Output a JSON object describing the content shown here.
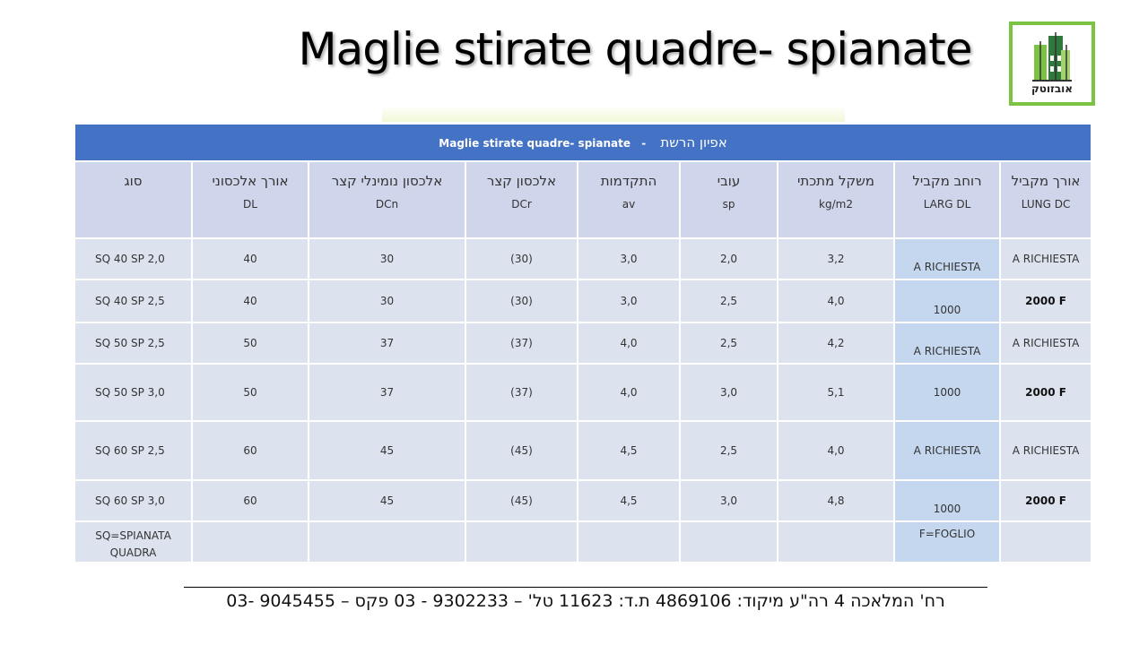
{
  "page": {
    "title": "Maglie stirate quadre- spianate"
  },
  "logo": {
    "text": "אובזוטק"
  },
  "table": {
    "banner": {
      "latin": "Maglie stirate quadre- spianate",
      "separator": "-",
      "hebrew": "אפיון הרשת"
    },
    "headers": [
      {
        "hebrew": "סוג",
        "abbr": ""
      },
      {
        "hebrew": "אורך אלכסוני",
        "abbr": "DL"
      },
      {
        "hebrew": "אלכסון נומינלי קצר",
        "abbr": "DCn"
      },
      {
        "hebrew": "אלכסון קצר",
        "abbr": "DCr"
      },
      {
        "hebrew": "התקדמות",
        "abbr": "av"
      },
      {
        "hebrew": "עובי",
        "abbr": "sp"
      },
      {
        "hebrew": "משקל מתכתי",
        "abbr": "kg/m2"
      },
      {
        "hebrew": "רוחב מקביל",
        "abbr": "LARG DL"
      },
      {
        "hebrew": "אורך מקביל",
        "abbr": "LUNG DC"
      }
    ],
    "rows": [
      [
        "SQ 40 SP 2,0",
        "40",
        "30",
        "(30)",
        "3,0",
        "2,0",
        "3,2",
        "A RICHIESTA",
        "A RICHIESTA"
      ],
      [
        "SQ 40 SP 2,5",
        "40",
        "30",
        "(30)",
        "3,0",
        "2,5",
        "4,0",
        "1000",
        "2000 F"
      ],
      [
        "SQ 50 SP 2,5",
        "50",
        "37",
        "(37)",
        "4,0",
        "2,5",
        "4,2",
        "A RICHIESTA",
        "A RICHIESTA"
      ],
      [
        "SQ 50 SP 3,0",
        "50",
        "37",
        "(37)",
        "4,0",
        "3,0",
        "5,1",
        "1000",
        "2000 F"
      ],
      [
        "SQ 60 SP 2,5",
        "60",
        "45",
        "(45)",
        "4,5",
        "2,5",
        "4,0",
        "A RICHIESTA",
        "A RICHIESTA"
      ],
      [
        "SQ 60 SP 3,0",
        "60",
        "45",
        "(45)",
        "4,5",
        "3,0",
        "4,8",
        "1000",
        "2000 F"
      ]
    ],
    "notes": {
      "type_note": "SQ=SPIANATA QUADRA",
      "width_note": "F=FOGLIO"
    }
  },
  "footer": {
    "text": "רח' המלאכה 4 רה\"ע מיקוד: 4869106 ת.ד: 11623 טל' – 9302233 - 03 פקס – 9045455 -03"
  }
}
